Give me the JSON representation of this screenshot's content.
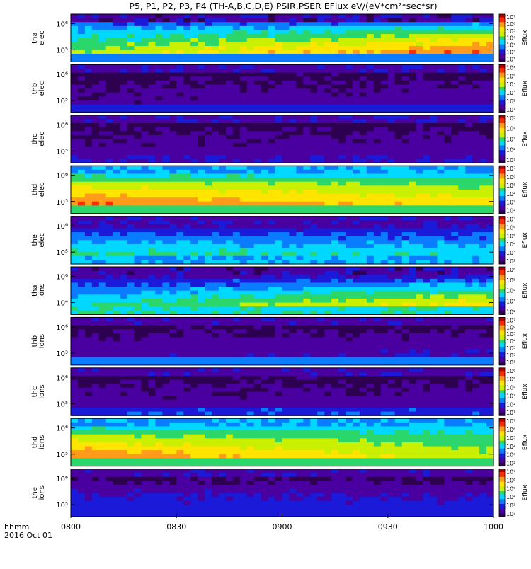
{
  "chart_data": {
    "type": "heatmap",
    "title": "P5, P1, P2, P3, P4 (TH-A,B,C,D,E) PSIR,PSER EFlux eV/(eV*cm²*sec*sr)",
    "x_axis": {
      "label": "hhmm",
      "date_label": "2016 Oct 01",
      "range": [
        "08:00",
        "10:00"
      ],
      "ticks": [
        "0800",
        "0830",
        "0900",
        "0930",
        "1000"
      ]
    },
    "colorbar_title": "Eflux",
    "y_scale": "log",
    "panels": [
      {
        "name": "tha_elec",
        "label_lines": [
          "tha",
          "elec"
        ],
        "y_ticks": [
          "10⁶",
          "10⁵"
        ],
        "y_tick_exponents": [
          6,
          5
        ],
        "colorbar_ticks": [
          "10⁷",
          "10⁶",
          "10⁵",
          "10⁴",
          "10³",
          "10²",
          "10¹"
        ],
        "colorbar_exponents": [
          7,
          6,
          5,
          4,
          3,
          2,
          1
        ],
        "profile": {
          "bottom": 0.45,
          "band_lo": 0.58,
          "band_hi": 0.92,
          "upper_top": 0.18,
          "noise": 0.18,
          "floor": 0.02
        }
      },
      {
        "name": "thb_elec",
        "label_lines": [
          "thb",
          "elec"
        ],
        "y_ticks": [
          "10⁶",
          "10⁵"
        ],
        "y_tick_exponents": [
          6,
          5
        ],
        "colorbar_ticks": [
          "10⁶",
          "10⁵",
          "10⁴",
          "10³",
          "10²",
          "10¹"
        ],
        "colorbar_exponents": [
          6,
          5,
          4,
          3,
          2,
          1
        ],
        "profile": {
          "bottom": 0.25,
          "band_lo": 0.08,
          "band_hi": 0.12,
          "upper_top": 0.0,
          "noise": 0.12,
          "floor": 0.06
        }
      },
      {
        "name": "thc_elec",
        "label_lines": [
          "thc",
          "elec"
        ],
        "y_ticks": [
          "10⁶",
          "10⁵"
        ],
        "y_tick_exponents": [
          6,
          5
        ],
        "colorbar_ticks": [
          "10⁵",
          "10⁴",
          "10³",
          "10²",
          "10¹"
        ],
        "colorbar_exponents": [
          5,
          4,
          3,
          2,
          1
        ],
        "profile": {
          "bottom": 0.2,
          "band_lo": 0.1,
          "band_hi": 0.12,
          "upper_top": 0.0,
          "noise": 0.12,
          "floor": 0.06
        }
      },
      {
        "name": "thd_elec",
        "label_lines": [
          "thd",
          "elec"
        ],
        "y_ticks": [
          "10⁶",
          "10⁵"
        ],
        "y_tick_exponents": [
          6,
          5
        ],
        "colorbar_ticks": [
          "10⁷",
          "10⁶",
          "10⁵",
          "10⁴",
          "10³",
          "10²"
        ],
        "colorbar_exponents": [
          7,
          6,
          5,
          4,
          3,
          2
        ],
        "profile": {
          "bottom": 0.8,
          "band_lo": 0.88,
          "band_hi": 0.72,
          "upper_top": 0.35,
          "noise": 0.08,
          "floor": 0.3
        }
      },
      {
        "name": "the_elec",
        "label_lines": [
          "the",
          "elec"
        ],
        "y_ticks": [
          "10⁶",
          "10⁵"
        ],
        "y_tick_exponents": [
          6,
          5
        ],
        "colorbar_ticks": [
          "10⁷",
          "10⁶",
          "10⁵",
          "10⁴",
          "10³",
          "10²"
        ],
        "colorbar_exponents": [
          7,
          6,
          5,
          4,
          3,
          2
        ],
        "profile": {
          "bottom": 0.55,
          "band_lo": 0.5,
          "band_hi": 0.45,
          "upper_top": 0.05,
          "noise": 0.14,
          "floor": 0.05
        }
      },
      {
        "name": "tha_ions",
        "label_lines": [
          "tha",
          "ions"
        ],
        "y_ticks": [
          "10⁶",
          "10⁴"
        ],
        "y_tick_exponents": [
          6,
          4
        ],
        "colorbar_ticks": [
          "10⁶",
          "10⁵",
          "10⁴",
          "10³",
          "10²"
        ],
        "colorbar_exponents": [
          6,
          5,
          4,
          3,
          2
        ],
        "profile": {
          "bottom": 0.7,
          "band_lo": 0.45,
          "band_hi": 0.75,
          "upper_top": 0.05,
          "noise": 0.14,
          "floor": 0.04
        }
      },
      {
        "name": "thb_ions",
        "label_lines": [
          "thb",
          "ions"
        ],
        "y_ticks": [
          "10⁶",
          "10³"
        ],
        "y_tick_exponents": [
          6,
          3
        ],
        "colorbar_ticks": [
          "10⁷",
          "10⁶",
          "10⁵",
          "10⁴",
          "10³",
          "10²",
          "10¹"
        ],
        "colorbar_exponents": [
          7,
          6,
          5,
          4,
          3,
          2,
          1
        ],
        "profile": {
          "bottom": 0.5,
          "band_lo": 0.12,
          "band_hi": 0.15,
          "upper_top": 0.0,
          "noise": 0.12,
          "floor": 0.05
        }
      },
      {
        "name": "thc_ions",
        "label_lines": [
          "thc",
          "ions"
        ],
        "y_ticks": [
          "10⁶",
          "10⁵"
        ],
        "y_tick_exponents": [
          6,
          5
        ],
        "colorbar_ticks": [
          "10⁶",
          "10⁵",
          "10⁴",
          "10³",
          "10²",
          "10¹"
        ],
        "colorbar_exponents": [
          6,
          5,
          4,
          3,
          2,
          1
        ],
        "profile": {
          "bottom": 0.35,
          "band_lo": 0.1,
          "band_hi": 0.12,
          "upper_top": 0.0,
          "noise": 0.12,
          "floor": 0.05
        }
      },
      {
        "name": "thd_ions",
        "label_lines": [
          "thd",
          "ions"
        ],
        "y_ticks": [
          "10⁶",
          "10⁵"
        ],
        "y_tick_exponents": [
          6,
          5
        ],
        "colorbar_ticks": [
          "10⁷",
          "10⁶",
          "10⁵",
          "10⁴",
          "10³",
          "10²"
        ],
        "colorbar_exponents": [
          7,
          6,
          5,
          4,
          3,
          2
        ],
        "profile": {
          "bottom": 0.75,
          "band_lo": 0.86,
          "band_hi": 0.6,
          "upper_top": 0.35,
          "noise": 0.08,
          "floor": 0.3
        }
      },
      {
        "name": "the_ions",
        "label_lines": [
          "the",
          "ions"
        ],
        "y_ticks": [
          "10⁶",
          "10⁵"
        ],
        "y_tick_exponents": [
          6,
          5
        ],
        "colorbar_ticks": [
          "10⁷",
          "10⁶",
          "10⁵",
          "10⁴",
          "10³",
          "10²"
        ],
        "colorbar_exponents": [
          7,
          6,
          5,
          4,
          3,
          2
        ],
        "profile": {
          "bottom": 0.3,
          "band_lo": 0.22,
          "band_hi": 0.2,
          "upper_top": 0.0,
          "noise": 0.12,
          "floor": 0.06
        }
      }
    ],
    "colormap": [
      "#2d0050",
      "#4a00a0",
      "#1a1ad8",
      "#0a7cff",
      "#00d8ff",
      "#2bd66b",
      "#c8f000",
      "#ffe400",
      "#ff9a1a",
      "#ff2a00",
      "#b00000"
    ]
  }
}
